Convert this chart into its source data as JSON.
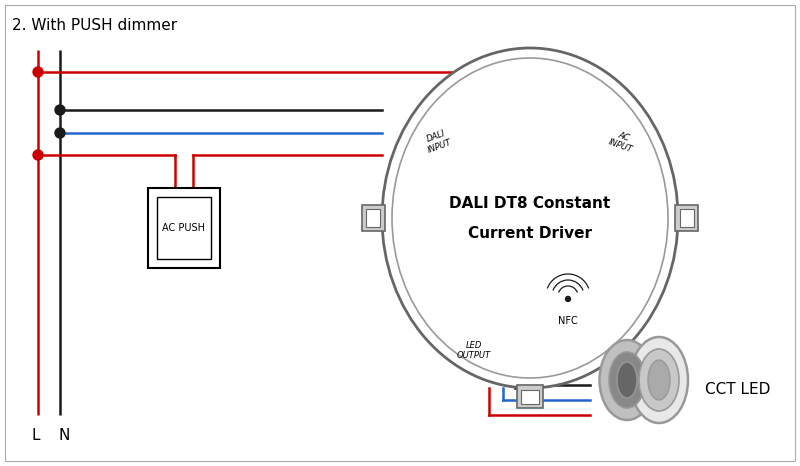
{
  "title": "2. With PUSH dimmer",
  "bg_color": "#ffffff",
  "wire_red": "#cc0000",
  "wire_black": "#1a1a1a",
  "wire_blue": "#2266cc",
  "gray_dark": "#666666",
  "gray_mid": "#999999",
  "gray_light": "#cccccc",
  "gray_fill": "#d8d8d8",
  "driver_label1": "DALI DT8 Constant",
  "driver_label2": "Current Driver",
  "push_label": "AC PUSH",
  "L_label": "L",
  "N_label": "N",
  "cct_label": "CCT LED",
  "dali_label": "DALI\nINPUT",
  "ac_label": "AC\nINPUT",
  "led_label": "LED\nOUTPUT",
  "nfc_label": "NFC",
  "figw": 8.0,
  "figh": 4.66,
  "dpi": 100
}
